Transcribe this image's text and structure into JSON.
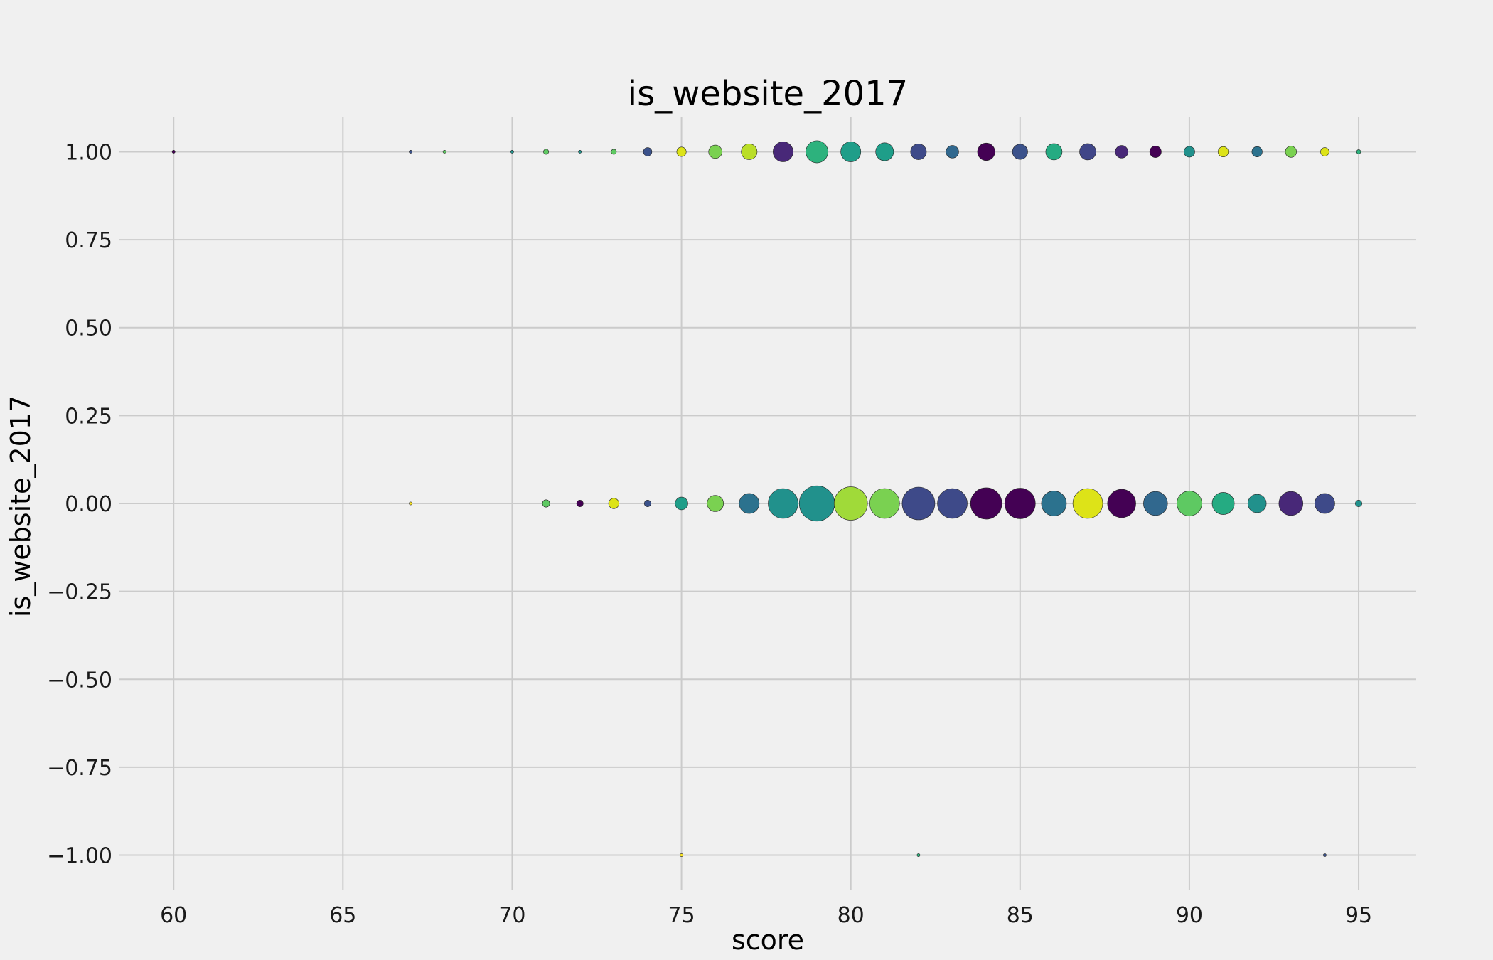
{
  "chart_data": {
    "type": "scatter",
    "title": "is_website_2017",
    "xlabel": "score",
    "ylabel": "is_website_2017",
    "xlim": [
      58.4,
      96.7
    ],
    "ylim": [
      -1.1,
      1.1
    ],
    "xticks": [
      60,
      65,
      70,
      75,
      80,
      85,
      90,
      95
    ],
    "yticks": [
      -1.0,
      -0.75,
      -0.5,
      -0.25,
      0.0,
      0.25,
      0.5,
      0.75,
      1.0
    ],
    "ytick_labels": [
      "−1.00",
      "−0.75",
      "−0.50",
      "−0.25",
      "0.00",
      "0.25",
      "0.50",
      "0.75",
      "1.00"
    ],
    "grid": true,
    "colormap": "viridis",
    "background": "#f0f0f0",
    "points": [
      {
        "x": 60,
        "y": 1,
        "size": 1,
        "color": "#440154"
      },
      {
        "x": 67,
        "y": 1,
        "size": 1,
        "color": "#3b528b"
      },
      {
        "x": 68,
        "y": 1,
        "size": 1,
        "color": "#5ec962"
      },
      {
        "x": 70,
        "y": 1,
        "size": 1,
        "color": "#21918c"
      },
      {
        "x": 71,
        "y": 1,
        "size": 3,
        "color": "#5ec962"
      },
      {
        "x": 72,
        "y": 1,
        "size": 1,
        "color": "#21918c"
      },
      {
        "x": 73,
        "y": 1,
        "size": 3,
        "color": "#5ec962"
      },
      {
        "x": 74,
        "y": 1,
        "size": 8,
        "color": "#3b528b"
      },
      {
        "x": 75,
        "y": 1,
        "size": 10,
        "color": "#dde318"
      },
      {
        "x": 76,
        "y": 1,
        "size": 20,
        "color": "#7ad151"
      },
      {
        "x": 77,
        "y": 1,
        "size": 28,
        "color": "#bade28"
      },
      {
        "x": 78,
        "y": 1,
        "size": 45,
        "color": "#482878"
      },
      {
        "x": 79,
        "y": 1,
        "size": 55,
        "color": "#2db27d"
      },
      {
        "x": 80,
        "y": 1,
        "size": 45,
        "color": "#1f9e89"
      },
      {
        "x": 81,
        "y": 1,
        "size": 36,
        "color": "#1f9e89"
      },
      {
        "x": 82,
        "y": 1,
        "size": 28,
        "color": "#3e4a89"
      },
      {
        "x": 83,
        "y": 1,
        "size": 18,
        "color": "#31688e"
      },
      {
        "x": 84,
        "y": 1,
        "size": 34,
        "color": "#440154"
      },
      {
        "x": 85,
        "y": 1,
        "size": 26,
        "color": "#3b528b"
      },
      {
        "x": 86,
        "y": 1,
        "size": 30,
        "color": "#25ab82"
      },
      {
        "x": 87,
        "y": 1,
        "size": 30,
        "color": "#404688"
      },
      {
        "x": 88,
        "y": 1,
        "size": 18,
        "color": "#482878"
      },
      {
        "x": 89,
        "y": 1,
        "size": 15,
        "color": "#440154"
      },
      {
        "x": 90,
        "y": 1,
        "size": 13,
        "color": "#21918c"
      },
      {
        "x": 91,
        "y": 1,
        "size": 12,
        "color": "#dde318"
      },
      {
        "x": 92,
        "y": 1,
        "size": 12,
        "color": "#2c728e"
      },
      {
        "x": 93,
        "y": 1,
        "size": 14,
        "color": "#7ad151"
      },
      {
        "x": 94,
        "y": 1,
        "size": 8,
        "color": "#dde318"
      },
      {
        "x": 95,
        "y": 1,
        "size": 2,
        "color": "#2db27d"
      },
      {
        "x": 67,
        "y": 0,
        "size": 1,
        "color": "#fde725"
      },
      {
        "x": 71,
        "y": 0,
        "size": 6,
        "color": "#5ec962"
      },
      {
        "x": 72,
        "y": 0,
        "size": 5,
        "color": "#440154"
      },
      {
        "x": 73,
        "y": 0,
        "size": 12,
        "color": "#dde318"
      },
      {
        "x": 74,
        "y": 0,
        "size": 5,
        "color": "#3b528b"
      },
      {
        "x": 75,
        "y": 0,
        "size": 18,
        "color": "#1f9e89"
      },
      {
        "x": 76,
        "y": 0,
        "size": 30,
        "color": "#7ad151"
      },
      {
        "x": 77,
        "y": 0,
        "size": 45,
        "color": "#2c728e"
      },
      {
        "x": 78,
        "y": 0,
        "size": 100,
        "color": "#21918c"
      },
      {
        "x": 79,
        "y": 0,
        "size": 140,
        "color": "#21918c"
      },
      {
        "x": 80,
        "y": 0,
        "size": 125,
        "color": "#a0da39"
      },
      {
        "x": 81,
        "y": 0,
        "size": 100,
        "color": "#7ad151"
      },
      {
        "x": 82,
        "y": 0,
        "size": 120,
        "color": "#3e4a89"
      },
      {
        "x": 83,
        "y": 0,
        "size": 100,
        "color": "#3e4a89"
      },
      {
        "x": 84,
        "y": 0,
        "size": 110,
        "color": "#440154"
      },
      {
        "x": 85,
        "y": 0,
        "size": 105,
        "color": "#440154"
      },
      {
        "x": 86,
        "y": 0,
        "size": 70,
        "color": "#2c728e"
      },
      {
        "x": 87,
        "y": 0,
        "size": 100,
        "color": "#dde318"
      },
      {
        "x": 88,
        "y": 0,
        "size": 90,
        "color": "#440154"
      },
      {
        "x": 89,
        "y": 0,
        "size": 65,
        "color": "#31688e"
      },
      {
        "x": 90,
        "y": 0,
        "size": 70,
        "color": "#5ec962"
      },
      {
        "x": 91,
        "y": 0,
        "size": 55,
        "color": "#25ab82"
      },
      {
        "x": 92,
        "y": 0,
        "size": 38,
        "color": "#21918c"
      },
      {
        "x": 93,
        "y": 0,
        "size": 65,
        "color": "#482878"
      },
      {
        "x": 94,
        "y": 0,
        "size": 45,
        "color": "#3e4a89"
      },
      {
        "x": 95,
        "y": 0,
        "size": 5,
        "color": "#21918c"
      },
      {
        "x": 75,
        "y": -1,
        "size": 1,
        "color": "#fde725"
      },
      {
        "x": 82,
        "y": -1,
        "size": 1,
        "color": "#2db27d"
      },
      {
        "x": 94,
        "y": -1,
        "size": 1,
        "color": "#3b528b"
      }
    ]
  }
}
